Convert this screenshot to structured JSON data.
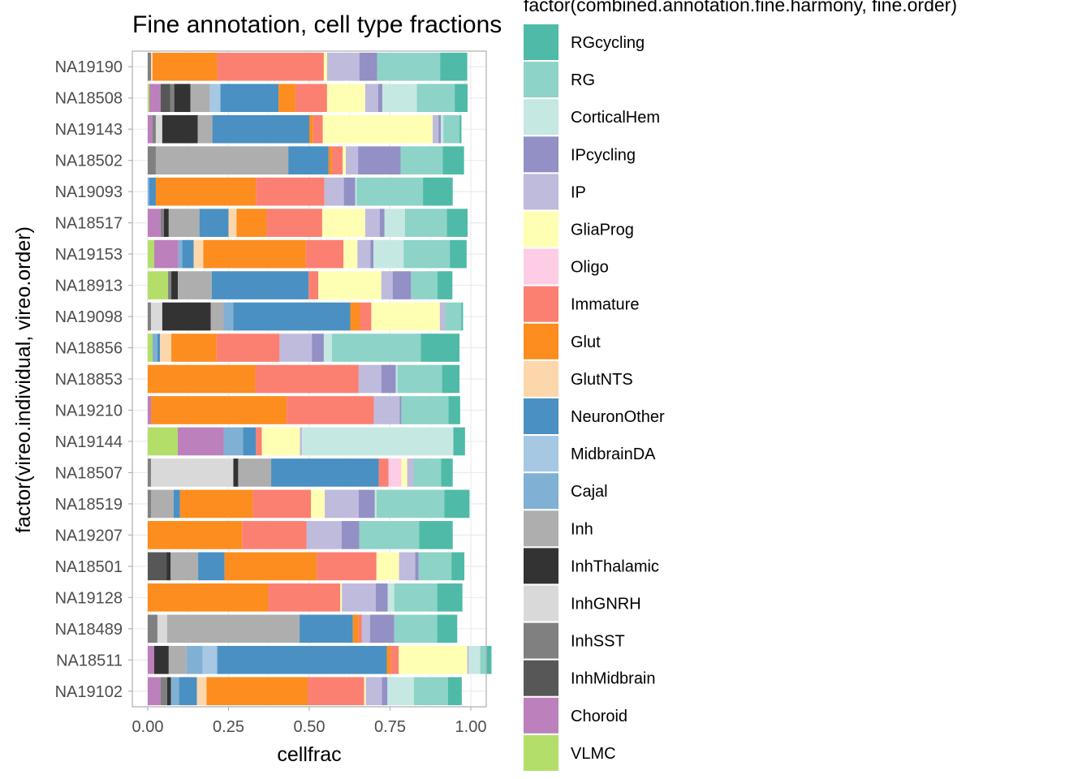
{
  "chart_data": {
    "type": "bar",
    "orientation": "horizontal",
    "stacked": true,
    "title": "Fine annotation, cell type fractions",
    "xlabel": "cellfrac",
    "ylabel": "factor(vireo.individual, vireo.order)",
    "legend_title": "factor(combined.annotation.fine.harmony, fine.order)",
    "xlim": [
      0,
      1.05
    ],
    "x_ticks": [
      "0.00",
      "0.25",
      "0.50",
      "0.75",
      "1.00"
    ],
    "x_tick_values": [
      0,
      0.25,
      0.5,
      0.75,
      1.0
    ],
    "grid": true,
    "legend_position": "right",
    "categories": [
      "NA19190",
      "NA18508",
      "NA19143",
      "NA18502",
      "NA19093",
      "NA18517",
      "NA19153",
      "NA18913",
      "NA19098",
      "NA18856",
      "NA18853",
      "NA19210",
      "NA19144",
      "NA18507",
      "NA18519",
      "NA19207",
      "NA18501",
      "NA19128",
      "NA18489",
      "NA18511",
      "NA19102"
    ],
    "stack_order": [
      "VLMC",
      "Choroid",
      "InhMidbrain",
      "InhSST",
      "InhGNRH",
      "InhThalamic",
      "Inh",
      "Cajal",
      "MidbrainDA",
      "NeuronOther",
      "GlutNTS",
      "Glut",
      "Immature",
      "Oligo",
      "GliaProg",
      "IP",
      "IPcycling",
      "CorticalHem",
      "RG",
      "RGcycling"
    ],
    "series": [
      {
        "name": "RGcycling",
        "color": "#4fbaa8",
        "values": [
          0.084,
          0.04,
          0.006,
          0.066,
          0.092,
          0.064,
          0.052,
          0.046,
          0.005,
          0.12,
          0.054,
          0.036,
          0.036,
          0.036,
          0.078,
          0.104,
          0.04,
          0.078,
          0.062,
          0.017,
          0.043
        ]
      },
      {
        "name": "RG",
        "color": "#8dd3c7",
        "values": [
          0.195,
          0.117,
          0.05,
          0.13,
          0.205,
          0.13,
          0.143,
          0.082,
          0.05,
          0.275,
          0.138,
          0.146,
          0.0,
          0.085,
          0.21,
          0.185,
          0.102,
          0.133,
          0.133,
          0.018,
          0.105
        ]
      },
      {
        "name": "CorticalHem",
        "color": "#c6e8e2",
        "values": [
          0.0,
          0.107,
          0.008,
          0.0,
          0.005,
          0.063,
          0.093,
          0.0,
          0.0,
          0.025,
          0.005,
          0.0,
          0.468,
          0.0,
          0.005,
          0.0,
          0.0,
          0.02,
          0.0,
          0.035,
          0.082
        ]
      },
      {
        "name": "IPcycling",
        "color": "#9290c4",
        "values": [
          0.055,
          0.013,
          0.007,
          0.132,
          0.035,
          0.015,
          0.01,
          0.057,
          0.0,
          0.037,
          0.045,
          0.005,
          0.0,
          0.0,
          0.05,
          0.055,
          0.01,
          0.037,
          0.075,
          0.0,
          0.017
        ]
      },
      {
        "name": "IP",
        "color": "#bebbdd",
        "values": [
          0.1,
          0.04,
          0.018,
          0.038,
          0.06,
          0.045,
          0.04,
          0.035,
          0.017,
          0.1,
          0.07,
          0.08,
          0.007,
          0.02,
          0.105,
          0.108,
          0.05,
          0.105,
          0.025,
          0.005,
          0.05
        ]
      },
      {
        "name": "GliaProg",
        "color": "#ffffb3",
        "values": [
          0.01,
          0.118,
          0.34,
          0.01,
          0.0,
          0.133,
          0.043,
          0.195,
          0.212,
          0.0,
          0.0,
          0.0,
          0.118,
          0.018,
          0.043,
          0.0,
          0.07,
          0.005,
          0.0,
          0.212,
          0.005
        ]
      },
      {
        "name": "Oligo",
        "color": "#fccde5",
        "values": [
          0.0,
          0.0,
          0.0,
          0.0,
          0.0,
          0.0,
          0.0,
          0.0,
          0.0,
          0.0,
          0.0,
          0.0,
          0.0,
          0.04,
          0.0,
          0.0,
          0.0,
          0.0,
          0.0,
          0.0,
          0.0
        ]
      },
      {
        "name": "Immature",
        "color": "#fb8072",
        "values": [
          0.33,
          0.098,
          0.03,
          0.033,
          0.212,
          0.172,
          0.117,
          0.03,
          0.035,
          0.195,
          0.32,
          0.27,
          0.018,
          0.03,
          0.18,
          0.2,
          0.185,
          0.223,
          0.01,
          0.025,
          0.175
        ]
      },
      {
        "name": "Glut",
        "color": "#fc8d1e",
        "values": [
          0.2,
          0.052,
          0.012,
          0.01,
          0.31,
          0.093,
          0.317,
          0.0,
          0.03,
          0.14,
          0.333,
          0.42,
          0.0,
          0.0,
          0.225,
          0.292,
          0.285,
          0.373,
          0.018,
          0.012,
          0.313
        ]
      },
      {
        "name": "GlutNTS",
        "color": "#fdd7ac",
        "values": [
          0.005,
          0.0,
          0.0,
          0.0,
          0.0,
          0.025,
          0.03,
          0.0,
          0.0,
          0.035,
          0.0,
          0.0,
          0.0,
          0.0,
          0.0,
          0.0,
          0.0,
          0.0,
          0.0,
          0.0,
          0.03
        ]
      },
      {
        "name": "NeuronOther",
        "color": "#4a90c2",
        "values": [
          0.0,
          0.18,
          0.3,
          0.125,
          0.02,
          0.09,
          0.035,
          0.3,
          0.362,
          0.008,
          0.0,
          0.0,
          0.04,
          0.333,
          0.02,
          0.0,
          0.082,
          0.0,
          0.165,
          0.525,
          0.055
        ]
      },
      {
        "name": "MidbrainDA",
        "color": "#a6c8e3",
        "values": [
          0.0,
          0.033,
          0.0,
          0.0,
          0.0,
          0.0,
          0.0,
          0.0,
          0.0,
          0.0,
          0.0,
          0.0,
          0.0,
          0.0,
          0.0,
          0.0,
          0.0,
          0.0,
          0.0,
          0.045,
          0.0
        ]
      },
      {
        "name": "Cajal",
        "color": "#80b0d4",
        "values": [
          0.0,
          0.0,
          0.0,
          0.0,
          0.005,
          0.0,
          0.012,
          0.0,
          0.03,
          0.015,
          0.0,
          0.0,
          0.06,
          0.0,
          0.0,
          0.0,
          0.0,
          0.0,
          0.0,
          0.05,
          0.025
        ]
      },
      {
        "name": "Inh",
        "color": "#aeaeae",
        "values": [
          0.0,
          0.06,
          0.045,
          0.41,
          0.0,
          0.095,
          0.0,
          0.105,
          0.04,
          0.0,
          0.0,
          0.0,
          0.0,
          0.102,
          0.07,
          0.0,
          0.085,
          0.0,
          0.41,
          0.055,
          0.0
        ]
      },
      {
        "name": "InhThalamic",
        "color": "#333333",
        "values": [
          0.0,
          0.05,
          0.11,
          0.0,
          0.0,
          0.015,
          0.0,
          0.02,
          0.15,
          0.0,
          0.0,
          0.0,
          0.0,
          0.015,
          0.0,
          0.0,
          0.013,
          0.0,
          0.0,
          0.045,
          0.012
        ]
      },
      {
        "name": "InhGNRH",
        "color": "#d9d9d9",
        "values": [
          0.0,
          0.0,
          0.02,
          0.0,
          0.0,
          0.0,
          0.0,
          0.0,
          0.035,
          0.0,
          0.0,
          0.0,
          0.0,
          0.255,
          0.0,
          0.0,
          0.0,
          0.0,
          0.03,
          0.0,
          0.0
        ]
      },
      {
        "name": "InhSST",
        "color": "#808080",
        "values": [
          0.01,
          0.012,
          0.01,
          0.025,
          0.0,
          0.01,
          0.0,
          0.01,
          0.01,
          0.0,
          0.0,
          0.0,
          0.0,
          0.01,
          0.01,
          0.0,
          0.0,
          0.0,
          0.03,
          0.0,
          0.02
        ]
      },
      {
        "name": "InhMidbrain",
        "color": "#575757",
        "values": [
          0.0,
          0.03,
          0.0,
          0.0,
          0.0,
          0.0,
          0.0,
          0.0,
          0.0,
          0.0,
          0.0,
          0.0,
          0.0,
          0.0,
          0.0,
          0.0,
          0.058,
          0.0,
          0.0,
          0.0,
          0.0
        ]
      },
      {
        "name": "Choroid",
        "color": "#bc80bd",
        "values": [
          0.0,
          0.035,
          0.015,
          0.0,
          0.0,
          0.04,
          0.075,
          0.0,
          0.0,
          0.0,
          0.0,
          0.01,
          0.142,
          0.0,
          0.0,
          0.0,
          0.0,
          0.0,
          0.0,
          0.02,
          0.04
        ]
      },
      {
        "name": "VLMC",
        "color": "#b3de69",
        "values": [
          0.0,
          0.005,
          0.0,
          0.0,
          0.0,
          0.0,
          0.02,
          0.063,
          0.0,
          0.015,
          0.0,
          0.0,
          0.093,
          0.0,
          0.0,
          0.0,
          0.0,
          0.0,
          0.0,
          0.0,
          0.0
        ]
      }
    ]
  }
}
